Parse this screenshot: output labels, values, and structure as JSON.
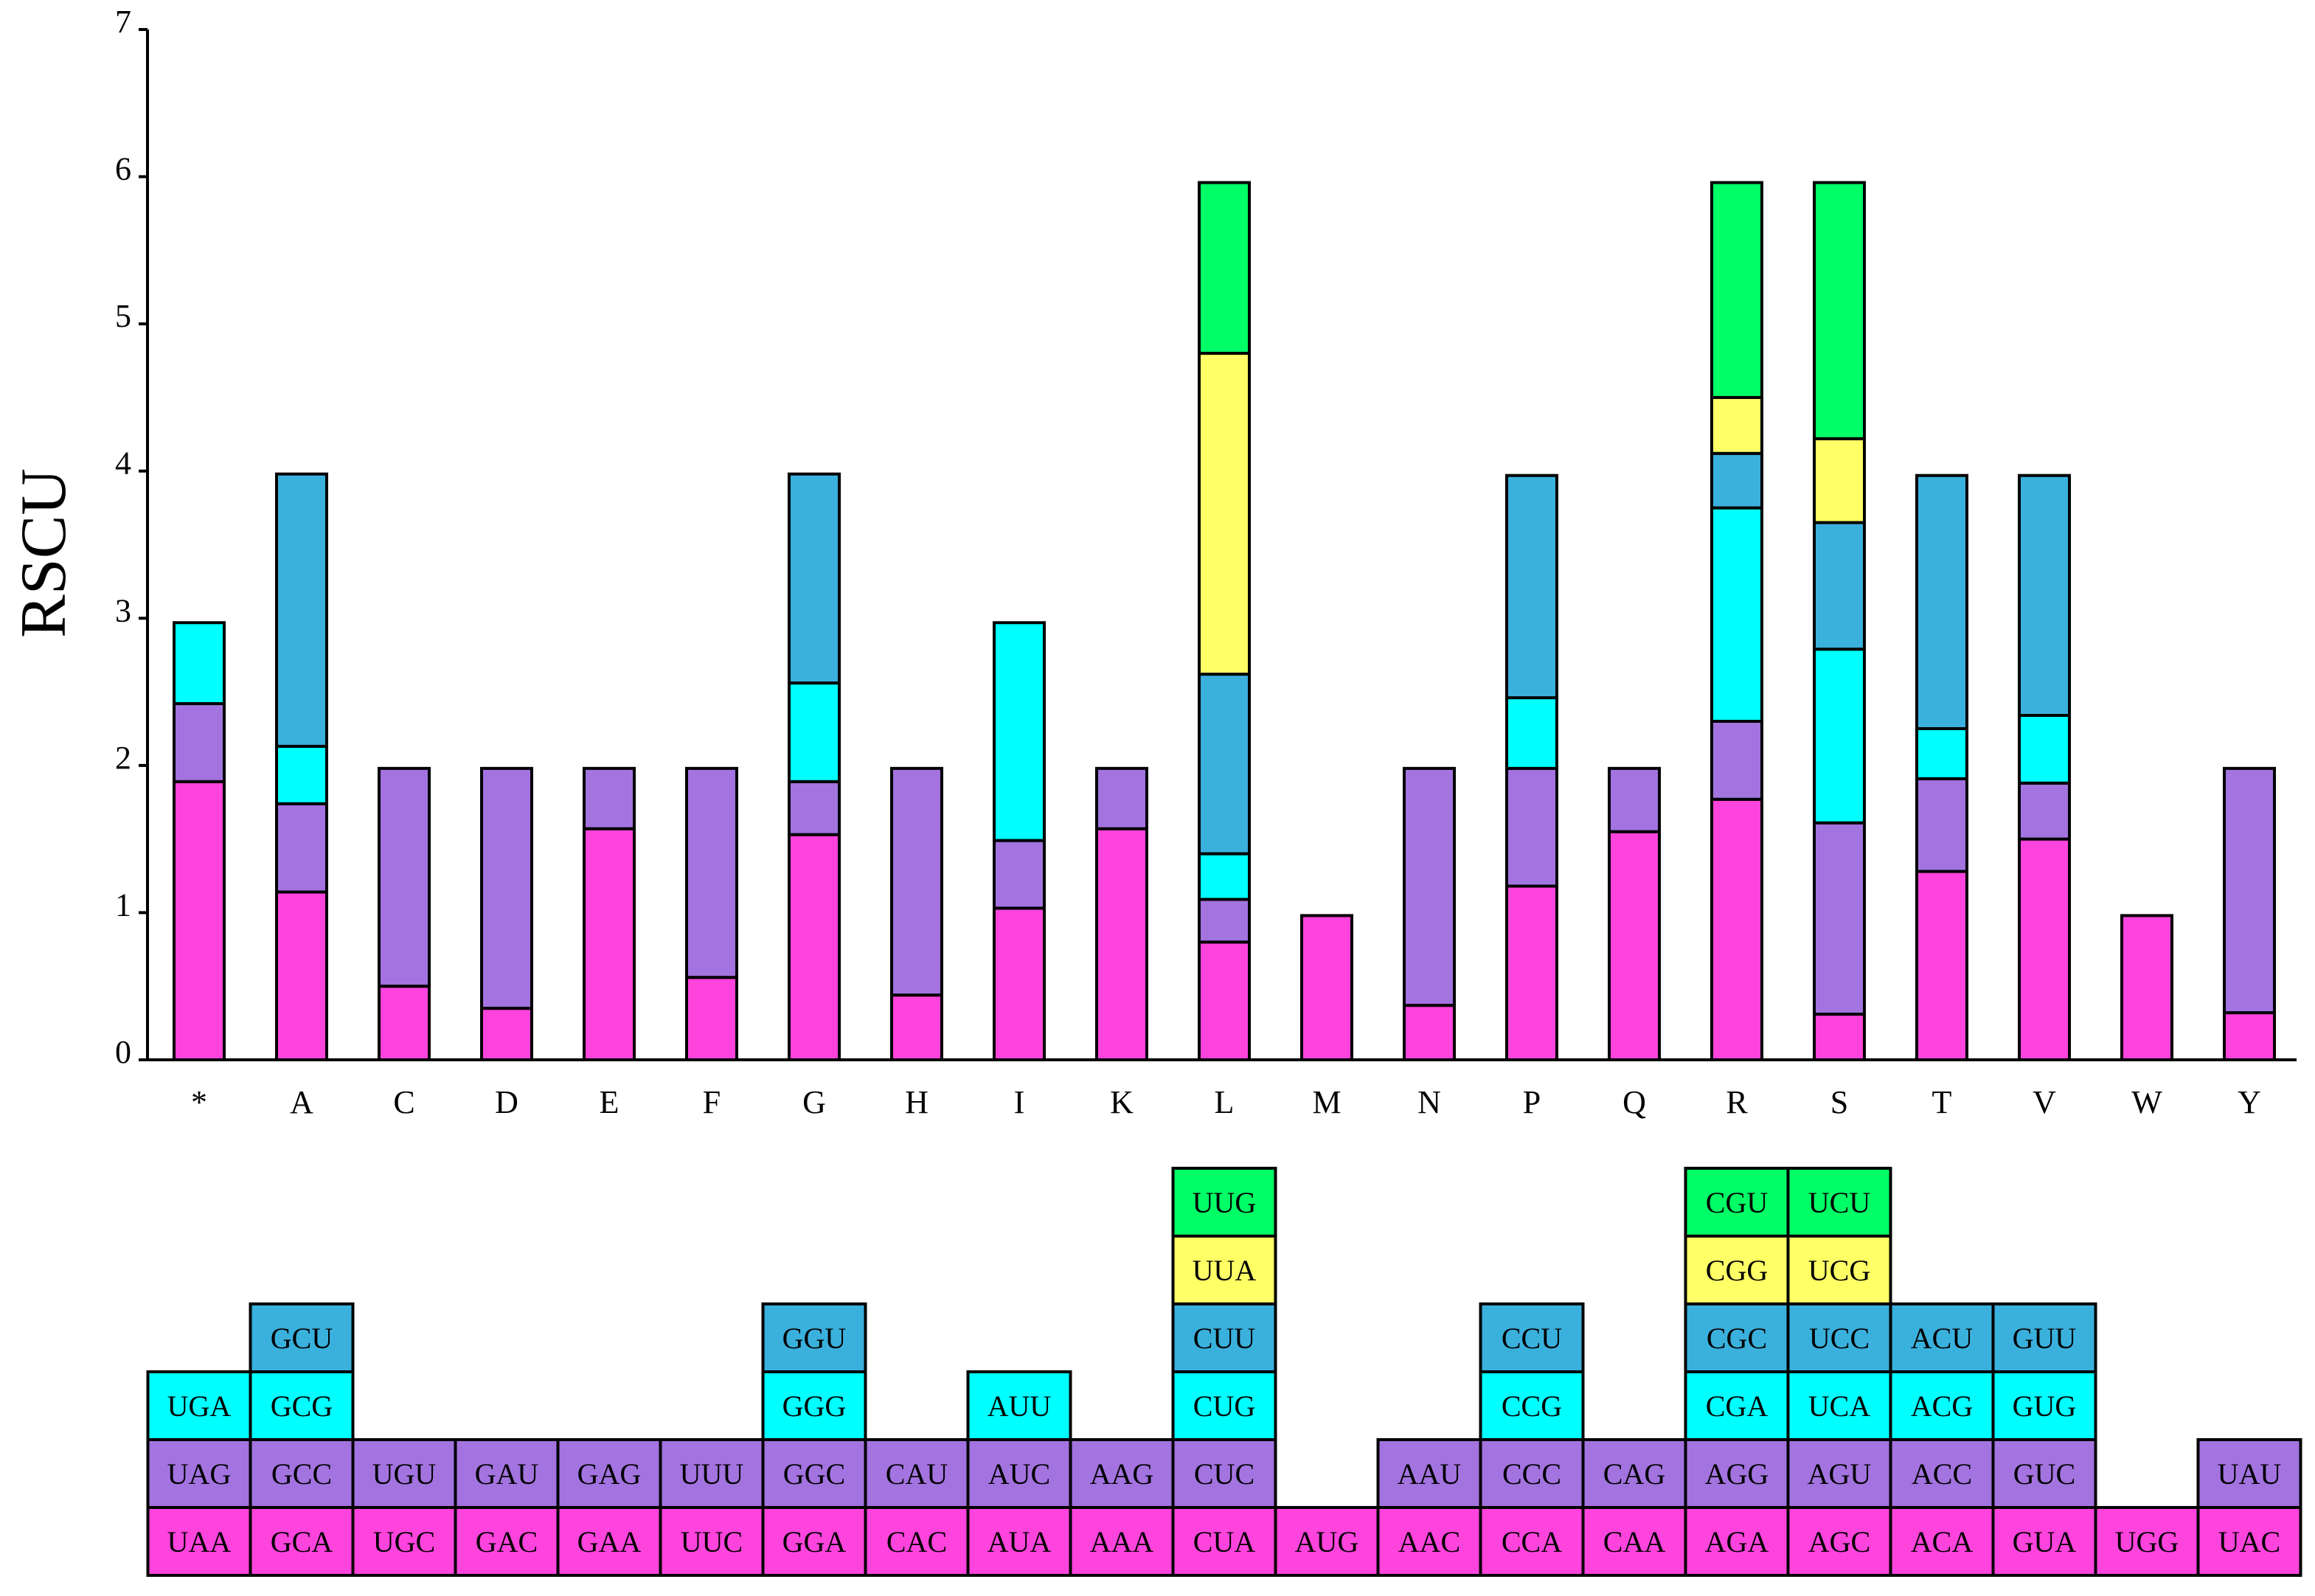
{
  "chart_data": {
    "type": "bar",
    "stacked": true,
    "title": "",
    "xlabel": "",
    "ylabel": "RSCU",
    "ylim": [
      0,
      7
    ],
    "yticks": [
      0,
      1,
      2,
      3,
      4,
      5,
      6,
      7
    ],
    "categories": [
      "*",
      "A",
      "C",
      "D",
      "E",
      "F",
      "G",
      "H",
      "I",
      "K",
      "L",
      "M",
      "N",
      "P",
      "Q",
      "R",
      "S",
      "T",
      "V",
      "W",
      "Y"
    ],
    "series_colors": [
      "#ff44dd",
      "#a373e0",
      "#00ffff",
      "#3ab0dd",
      "#ffff66",
      "#00ff66"
    ],
    "stacks": [
      {
        "aa": "*",
        "codons": [
          "UAA",
          "UAG",
          "UGA"
        ],
        "values": [
          1.89,
          0.53,
          0.55
        ]
      },
      {
        "aa": "A",
        "codons": [
          "GCA",
          "GCC",
          "GCG",
          "GCU"
        ],
        "values": [
          1.14,
          0.6,
          0.39,
          1.85
        ]
      },
      {
        "aa": "C",
        "codons": [
          "UGC",
          "UGU"
        ],
        "values": [
          0.5,
          1.48
        ]
      },
      {
        "aa": "D",
        "codons": [
          "GAC",
          "GAU"
        ],
        "values": [
          0.35,
          1.63
        ]
      },
      {
        "aa": "E",
        "codons": [
          "GAA",
          "GAG"
        ],
        "values": [
          1.57,
          0.41
        ]
      },
      {
        "aa": "F",
        "codons": [
          "UUC",
          "UUU"
        ],
        "values": [
          0.56,
          1.42
        ]
      },
      {
        "aa": "G",
        "codons": [
          "GGA",
          "GGC",
          "GGG",
          "GGU"
        ],
        "values": [
          1.53,
          0.36,
          0.67,
          1.42
        ]
      },
      {
        "aa": "H",
        "codons": [
          "CAC",
          "CAU"
        ],
        "values": [
          0.44,
          1.54
        ]
      },
      {
        "aa": "I",
        "codons": [
          "AUA",
          "AUC",
          "AUU"
        ],
        "values": [
          1.03,
          0.46,
          1.48
        ]
      },
      {
        "aa": "K",
        "codons": [
          "AAA",
          "AAG"
        ],
        "values": [
          1.57,
          0.41
        ]
      },
      {
        "aa": "L",
        "codons": [
          "CUA",
          "CUC",
          "CUG",
          "CUU",
          "UUA",
          "UUG"
        ],
        "values": [
          0.8,
          0.29,
          0.31,
          1.22,
          2.18,
          1.16
        ]
      },
      {
        "aa": "M",
        "codons": [
          "AUG"
        ],
        "values": [
          0.98
        ]
      },
      {
        "aa": "N",
        "codons": [
          "AAC",
          "AAU"
        ],
        "values": [
          0.37,
          1.61
        ]
      },
      {
        "aa": "P",
        "codons": [
          "CCA",
          "CCC",
          "CCG",
          "CCU"
        ],
        "values": [
          1.18,
          0.8,
          0.48,
          1.51
        ]
      },
      {
        "aa": "Q",
        "codons": [
          "CAA",
          "CAG"
        ],
        "values": [
          1.55,
          0.43
        ]
      },
      {
        "aa": "R",
        "codons": [
          "AGA",
          "AGG",
          "CGA",
          "CGC",
          "CGG",
          "CGU"
        ],
        "values": [
          1.77,
          0.53,
          1.45,
          0.37,
          0.38,
          1.46
        ]
      },
      {
        "aa": "S",
        "codons": [
          "AGC",
          "AGU",
          "UCA",
          "UCC",
          "UCG",
          "UCU"
        ],
        "values": [
          0.31,
          1.3,
          1.18,
          0.86,
          0.57,
          1.74
        ]
      },
      {
        "aa": "T",
        "codons": [
          "ACA",
          "ACC",
          "ACG",
          "ACU"
        ],
        "values": [
          1.28,
          0.63,
          0.34,
          1.72
        ]
      },
      {
        "aa": "V",
        "codons": [
          "GUA",
          "GUC",
          "GUG",
          "GUU"
        ],
        "values": [
          1.5,
          0.38,
          0.46,
          1.63
        ]
      },
      {
        "aa": "W",
        "codons": [
          "UGG"
        ],
        "values": [
          0.98
        ]
      },
      {
        "aa": "Y",
        "codons": [
          "UAC",
          "UAU"
        ],
        "values": [
          0.32,
          1.66
        ]
      }
    ]
  }
}
